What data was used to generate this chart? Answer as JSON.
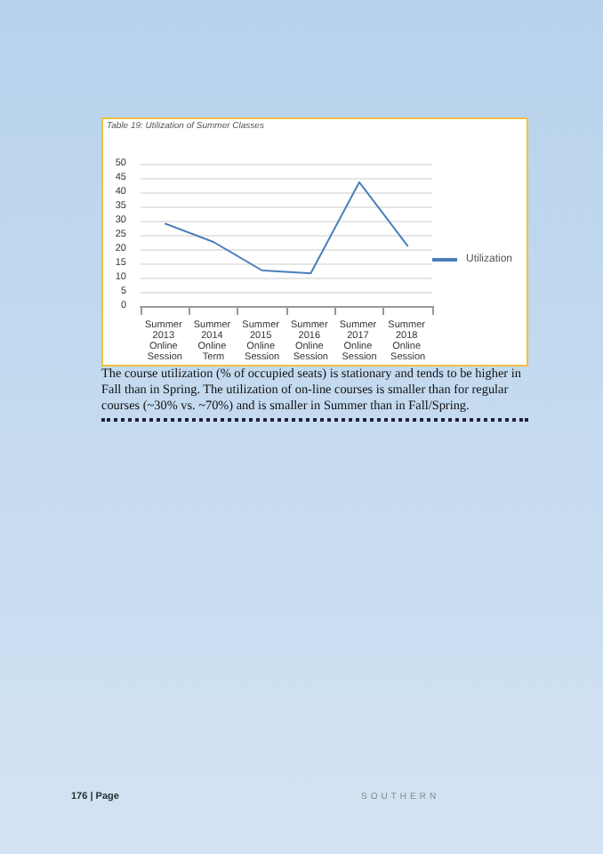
{
  "chart_data": {
    "type": "line",
    "title": "Table 19: Utilization of Summer Classes",
    "categories": [
      "Summer 2013 Online Session",
      "Summer 2014 Online Term",
      "Summer 2015 Online Session",
      "Summer 2016 Online Session",
      "Summer 2017 Online Session",
      "Summer 2018 Online Session"
    ],
    "series": [
      {
        "name": "Utilization",
        "color": "#4a7ebb",
        "values": [
          29,
          22.5,
          12.5,
          11.5,
          43.5,
          21
        ]
      }
    ],
    "ylim": [
      0,
      50
    ],
    "yticks": [
      0,
      5,
      10,
      15,
      20,
      25,
      30,
      35,
      40,
      45,
      50
    ],
    "grid": "y",
    "legend": "right",
    "marker": "none",
    "annotations": [
      "The course utilization (% of occupied seats) is stationary and tends to be higher in Fall than in Spring. The utilization of on-line courses is smaller than for regular courses (~30% vs. ~70%) and is smaller in Summer than in Fall/Spring.",
      "176 | Page",
      "SOUTHERN"
    ]
  }
}
